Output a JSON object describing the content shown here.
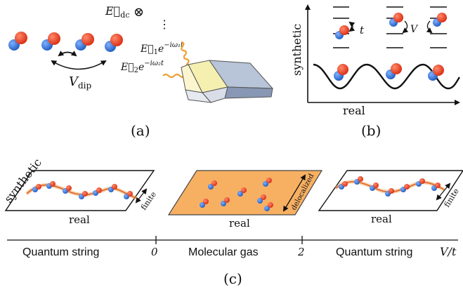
{
  "panel_a": {
    "label": "(a)",
    "field_dc": "E⃗",
    "field_dc_sub": "dc",
    "otimes": "⊗",
    "dots": "⋮",
    "field1": "E⃗",
    "field1_sub": "1",
    "field1_exp": "e",
    "field1_exp_sup": "−iω₁t",
    "field2": "E⃗",
    "field2_sub": "2",
    "field2_exp": "e",
    "field2_exp_sup": "−iω₂t",
    "vdip": "V",
    "vdip_sub": "dip"
  },
  "panel_b": {
    "label": "(b)",
    "yaxis": "synthetic",
    "xaxis": "real",
    "hop_t": "t",
    "hop_v": "V"
  },
  "panel_c": {
    "label": "(c)",
    "left_plane_synthetic": "synthetic",
    "left_plane_real": "real",
    "left_plane_width": "finite",
    "middle_plane_real": "real",
    "middle_plane_width": "delocalized",
    "right_plane_real": "real",
    "right_plane_width": "finite",
    "axis_phase_left": "Quantum string",
    "axis_tick_0": "0",
    "axis_phase_middle": "Molecular gas",
    "axis_tick_2": "2",
    "axis_phase_right": "Quantum string",
    "axis_label": "V/t"
  },
  "colors": {
    "molecule_red": "#e8361c",
    "molecule_blue": "#2e6fd0",
    "laser_orange": "#f0a030",
    "gas_plane": "#f7b062",
    "string_curve": "#e87a30",
    "trap_blue": "#4a6fa5"
  }
}
